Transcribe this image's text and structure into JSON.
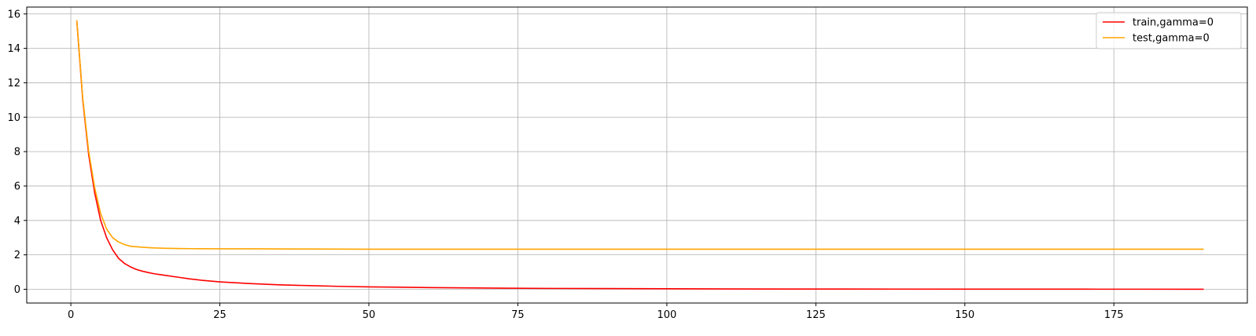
{
  "chart_data": {
    "type": "line",
    "title": "",
    "xlabel": "",
    "ylabel": "",
    "xlim": [
      -7.4,
      197.4
    ],
    "ylim": [
      -0.8,
      16.4
    ],
    "xticks": [
      0,
      25,
      50,
      75,
      100,
      125,
      150,
      175
    ],
    "yticks": [
      0,
      2,
      4,
      6,
      8,
      10,
      12,
      14,
      16
    ],
    "grid": true,
    "legend_position": "top-right",
    "series": [
      {
        "name": "train,gamma=0",
        "color": "#ff0000",
        "x": [
          1,
          2,
          3,
          4,
          5,
          6,
          7,
          8,
          9,
          10,
          11,
          12,
          13,
          14,
          15,
          16,
          18,
          20,
          22,
          25,
          30,
          35,
          40,
          45,
          50,
          60,
          70,
          80,
          90,
          100,
          110,
          120,
          130,
          140,
          150,
          160,
          170,
          180,
          190
        ],
        "values": [
          15.6,
          11.0,
          7.8,
          5.6,
          4.0,
          3.0,
          2.3,
          1.8,
          1.5,
          1.3,
          1.15,
          1.05,
          0.97,
          0.9,
          0.85,
          0.8,
          0.7,
          0.6,
          0.52,
          0.43,
          0.33,
          0.26,
          0.21,
          0.17,
          0.14,
          0.1,
          0.07,
          0.05,
          0.04,
          0.03,
          0.02,
          0.015,
          0.012,
          0.01,
          0.008,
          0.006,
          0.005,
          0.004,
          0.003
        ]
      },
      {
        "name": "test,gamma=0",
        "color": "#ffa500",
        "x": [
          1,
          2,
          3,
          4,
          5,
          6,
          7,
          8,
          9,
          10,
          11,
          12,
          13,
          14,
          15,
          16,
          18,
          20,
          25,
          30,
          40,
          50,
          60,
          75,
          100,
          125,
          150,
          175,
          190
        ],
        "values": [
          15.6,
          11.1,
          8.0,
          5.9,
          4.4,
          3.5,
          3.0,
          2.75,
          2.6,
          2.5,
          2.47,
          2.44,
          2.42,
          2.4,
          2.39,
          2.38,
          2.37,
          2.36,
          2.35,
          2.35,
          2.34,
          2.33,
          2.33,
          2.33,
          2.33,
          2.33,
          2.33,
          2.33,
          2.33
        ]
      }
    ]
  }
}
